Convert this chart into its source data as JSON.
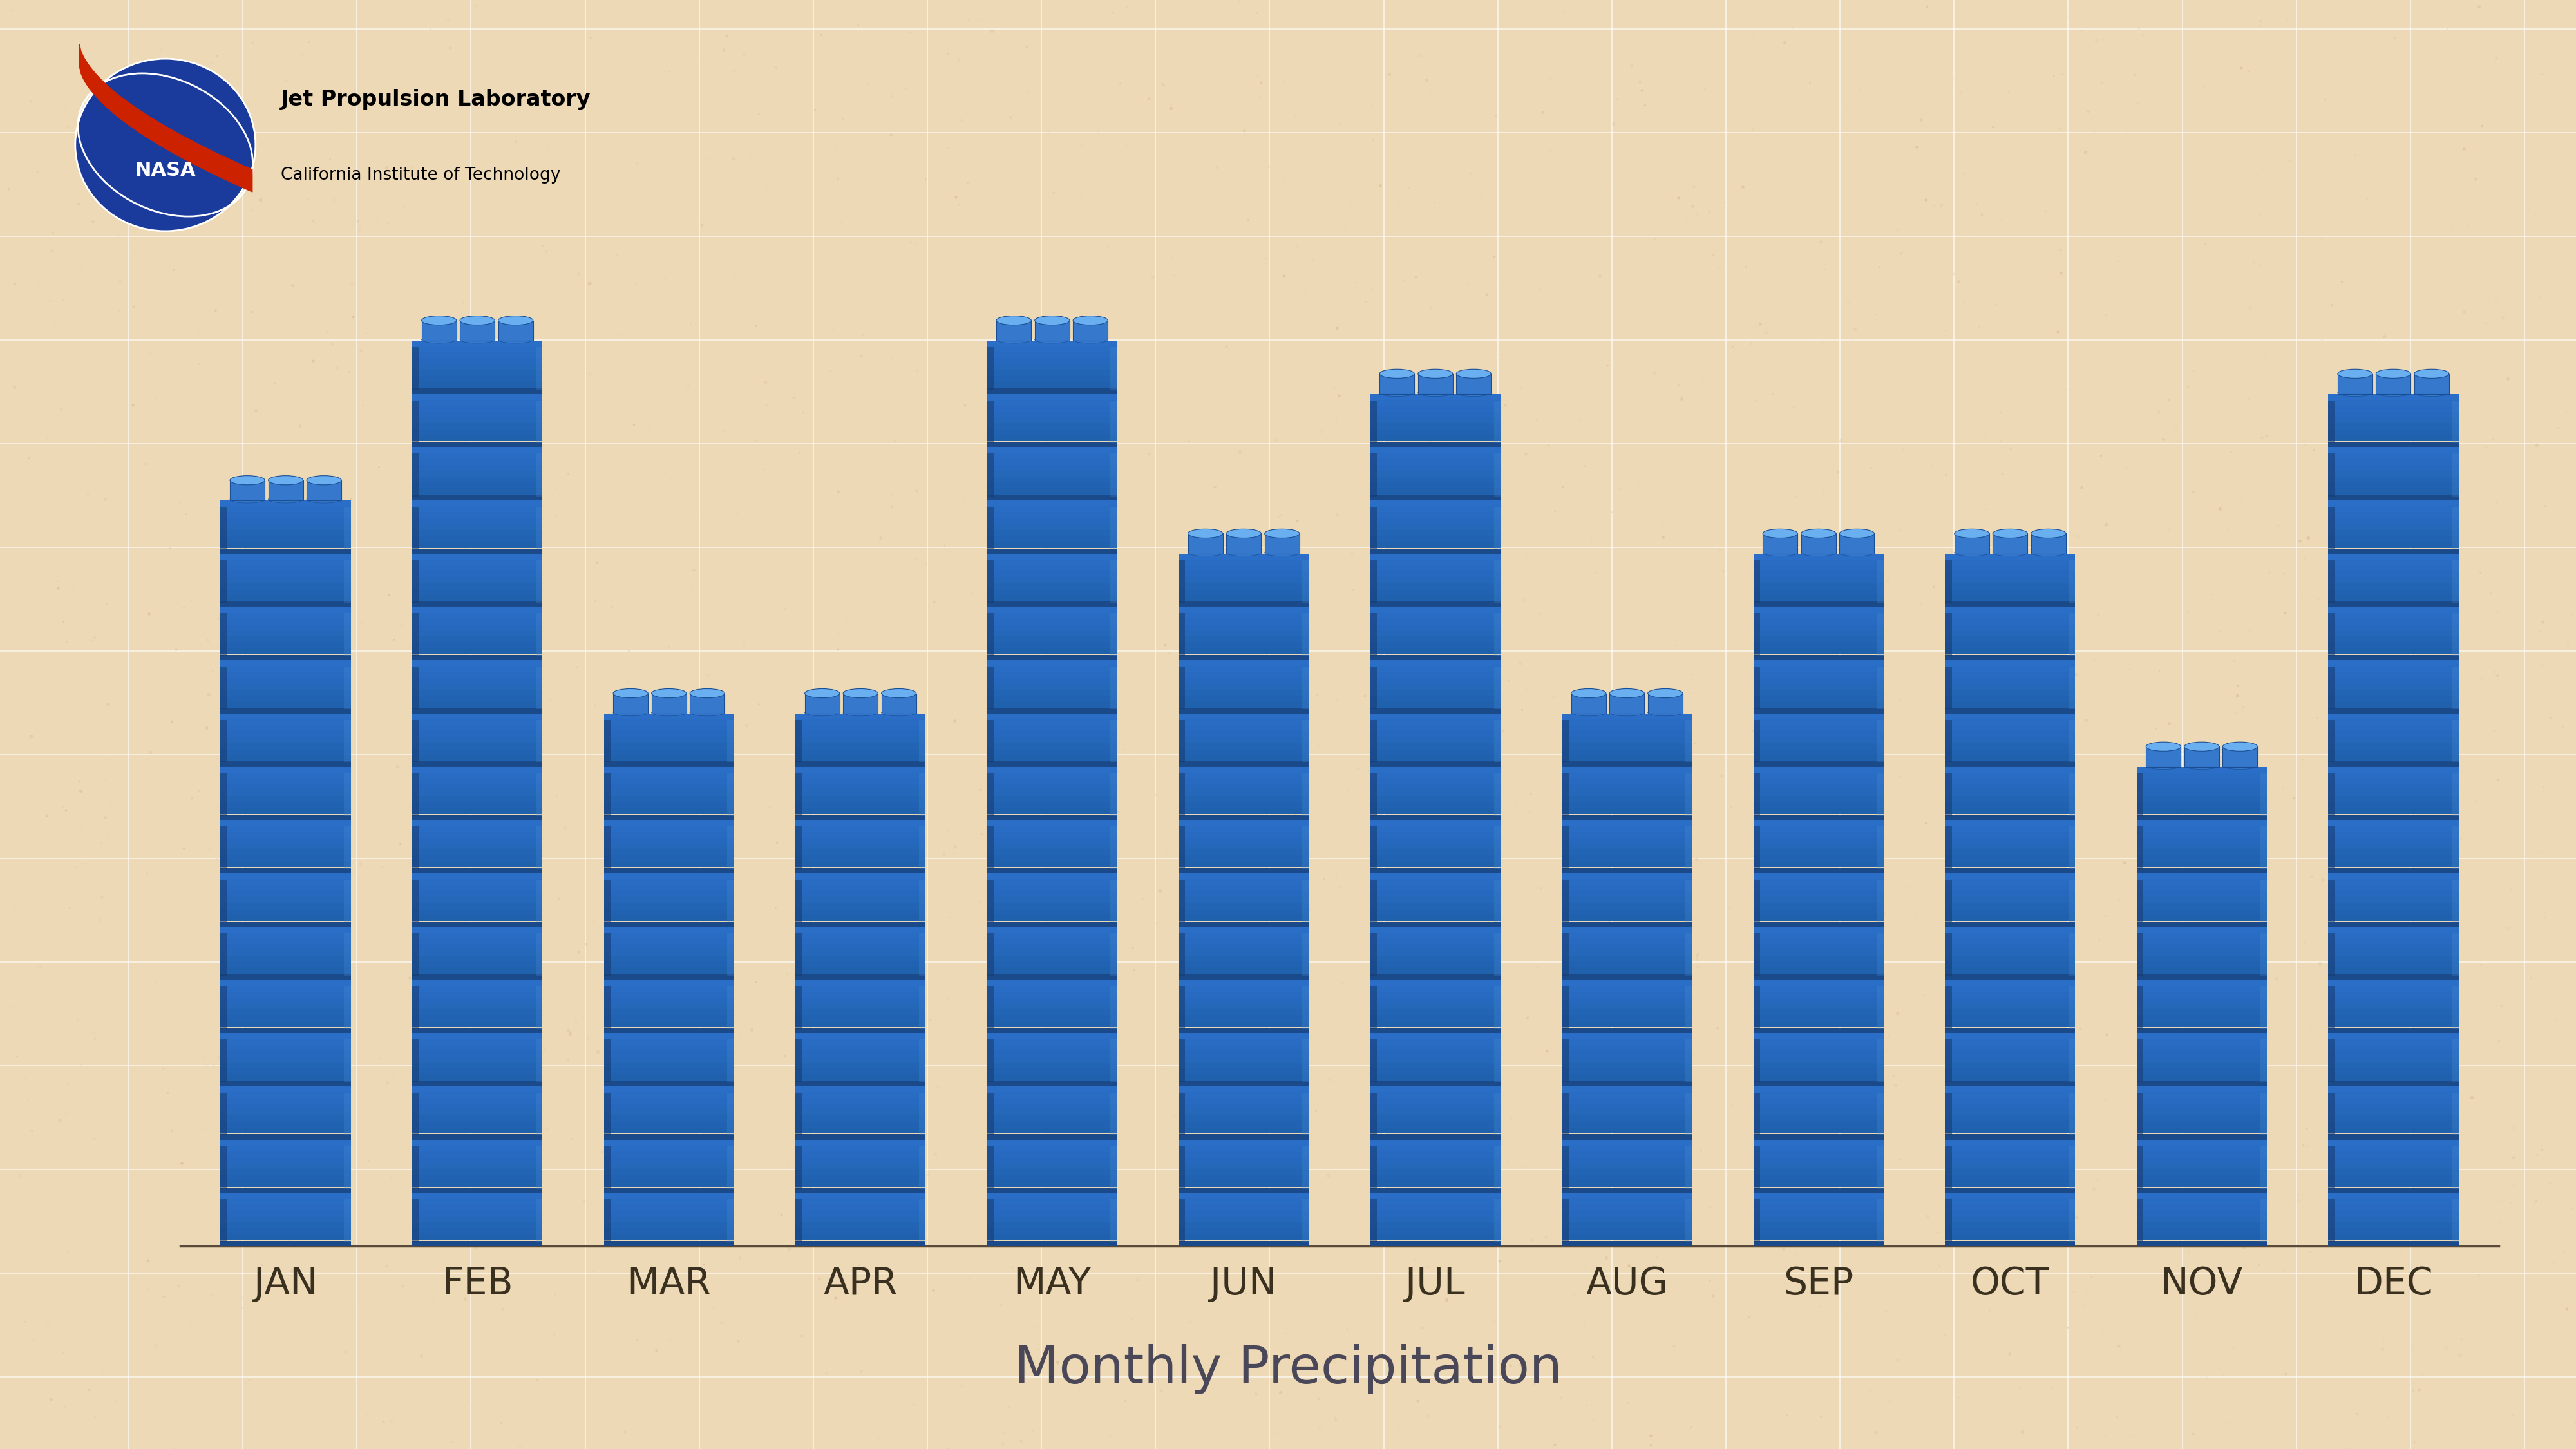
{
  "months": [
    "JAN",
    "FEB",
    "MAR",
    "APR",
    "MAY",
    "JUN",
    "JUL",
    "AUG",
    "SEP",
    "OCT",
    "NOV",
    "DEC"
  ],
  "values": [
    14,
    17,
    10,
    10,
    17,
    13,
    16,
    10,
    13,
    13,
    9,
    16
  ],
  "bar_color_face": "#2B6EC8",
  "bar_color_light": "#4A90D9",
  "bar_color_dark": "#1A4A8A",
  "bar_color_mid": "#1E5FAA",
  "bar_color_shadow": "#163A70",
  "stud_color": "#3578CC",
  "stud_color_dark": "#1B4F95",
  "stud_highlight": "#6AAFF0",
  "background_color": "#EDD9B5",
  "grid_color": "#FFFFFF",
  "axis_line_color": "#5A4A3A",
  "tick_label_color": "#3A3020",
  "title": "Monthly Precipitation",
  "title_color": "#4A4858",
  "title_fontsize": 58,
  "tick_fontsize": 42,
  "segment_count_max": 17,
  "bar_width": 0.7,
  "num_studs": 3,
  "total_bar_height": 17
}
